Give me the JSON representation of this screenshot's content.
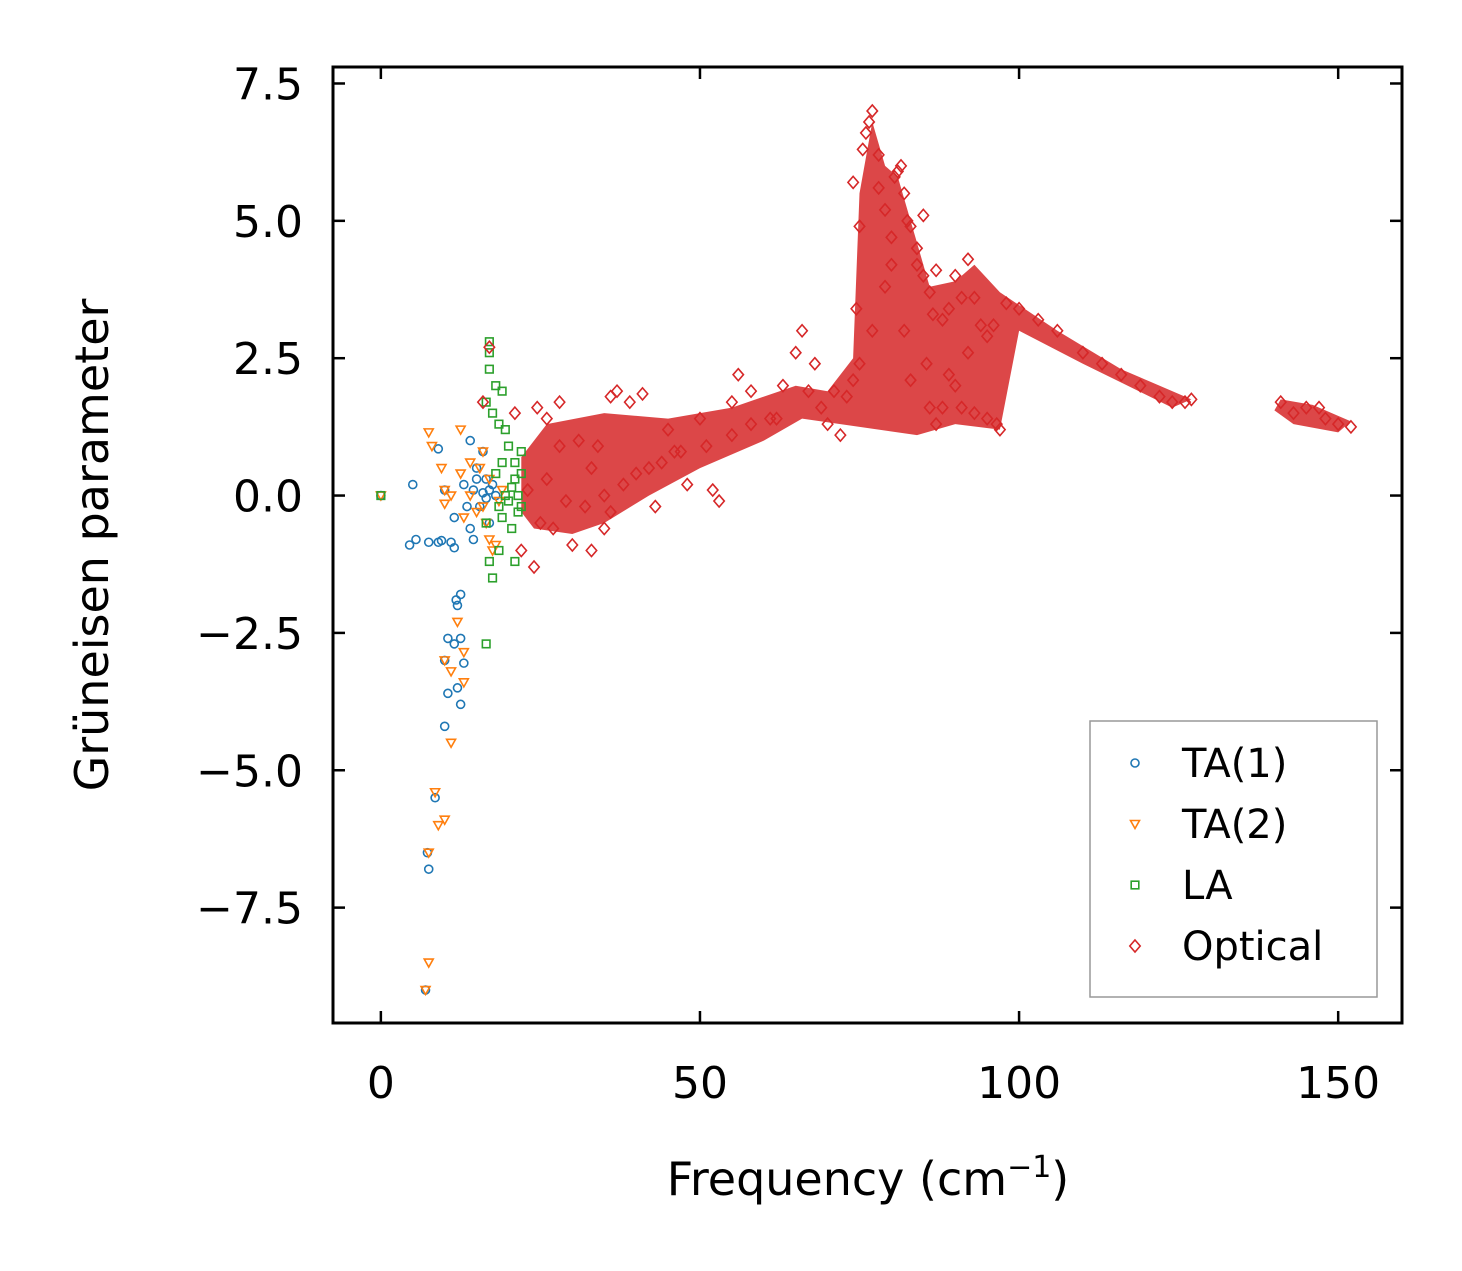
{
  "chart_data": {
    "type": "scatter",
    "title": "",
    "xlabel": "Frequency (cm",
    "xlabel_superscript": "−1",
    "xlabel_suffix": ")",
    "ylabel": "Grüneisen parameter",
    "xlim": [
      -7.5,
      160
    ],
    "ylim": [
      -9.6,
      7.8
    ],
    "x_ticks": [
      0,
      50,
      100,
      150
    ],
    "x_tick_labels": [
      "0",
      "50",
      "100",
      "150"
    ],
    "y_ticks": [
      7.5,
      5.0,
      2.5,
      0.0,
      -2.5,
      -5.0,
      -7.5
    ],
    "y_tick_labels": [
      "7.5",
      "5.0",
      "2.5",
      "0.0",
      "−2.5",
      "−5.0",
      "−7.5"
    ],
    "grid": false,
    "legend_position": "bottom-right",
    "series": [
      {
        "name": "TA(1)",
        "marker": "circle",
        "color": "#1f77b4",
        "points": [
          [
            0,
            0
          ],
          [
            7,
            -9.0
          ],
          [
            7.5,
            -6.8
          ],
          [
            7.3,
            -6.5
          ],
          [
            8.5,
            -5.5
          ],
          [
            10,
            -4.2
          ],
          [
            10.5,
            -3.6
          ],
          [
            12.5,
            -3.8
          ],
          [
            12,
            -3.5
          ],
          [
            10,
            -3.0
          ],
          [
            13,
            -3.05
          ],
          [
            10.5,
            -2.6
          ],
          [
            12.5,
            -2.6
          ],
          [
            11.5,
            -2.7
          ],
          [
            12,
            -2.0
          ],
          [
            12.5,
            -1.8
          ],
          [
            11.8,
            -1.9
          ],
          [
            4.5,
            -0.9
          ],
          [
            5.5,
            -0.8
          ],
          [
            7.5,
            -0.85
          ],
          [
            9,
            -0.85
          ],
          [
            9.5,
            -0.82
          ],
          [
            11,
            -0.85
          ],
          [
            11.5,
            -0.95
          ],
          [
            5,
            0.2
          ],
          [
            9,
            0.85
          ],
          [
            10,
            0.1
          ],
          [
            11.5,
            -0.4
          ],
          [
            13,
            0.2
          ],
          [
            14,
            1.0
          ],
          [
            16,
            0.8
          ],
          [
            15,
            0.5
          ],
          [
            16.5,
            0.3
          ],
          [
            17,
            0.1
          ],
          [
            15.5,
            -0.2
          ],
          [
            14,
            -0.6
          ],
          [
            14.5,
            -0.8
          ],
          [
            17,
            -0.5
          ],
          [
            13.5,
            -0.2
          ],
          [
            16,
            0.05
          ],
          [
            16.5,
            -0.05
          ],
          [
            17.5,
            0.2
          ],
          [
            18,
            0.0
          ],
          [
            15,
            0.3
          ],
          [
            14.5,
            0.1
          ]
        ]
      },
      {
        "name": "TA(2)",
        "marker": "triangle",
        "color": "#ff7f0e",
        "points": [
          [
            0,
            0
          ],
          [
            7,
            -9.0
          ],
          [
            7.5,
            -8.5
          ],
          [
            10,
            -5.9
          ],
          [
            9,
            -6.0
          ],
          [
            7.5,
            -6.5
          ],
          [
            8.5,
            -5.4
          ],
          [
            11,
            -4.5
          ],
          [
            11,
            -3.2
          ],
          [
            13,
            -3.4
          ],
          [
            13,
            -2.85
          ],
          [
            12,
            -2.3
          ],
          [
            10,
            -3.0
          ],
          [
            7.5,
            1.15
          ],
          [
            12.5,
            1.2
          ],
          [
            8,
            0.9
          ],
          [
            9.5,
            0.5
          ],
          [
            10,
            0.1
          ],
          [
            10,
            -0.15
          ],
          [
            11,
            0.0
          ],
          [
            12.5,
            0.4
          ],
          [
            13,
            -0.4
          ],
          [
            14,
            0.0
          ],
          [
            15,
            -0.3
          ],
          [
            16,
            -0.2
          ],
          [
            16.5,
            -0.5
          ],
          [
            17,
            0.3
          ],
          [
            18,
            -0.9
          ],
          [
            17,
            -0.8
          ],
          [
            16,
            0.8
          ],
          [
            14,
            0.6
          ],
          [
            15.5,
            0.5
          ],
          [
            18.5,
            -0.1
          ],
          [
            19,
            0.1
          ],
          [
            17.5,
            -1.0
          ]
        ]
      },
      {
        "name": "LA",
        "marker": "square",
        "color": "#2ca02c",
        "points": [
          [
            0,
            0
          ],
          [
            16.5,
            -2.7
          ],
          [
            17,
            2.8
          ],
          [
            17,
            2.6
          ],
          [
            17,
            2.3
          ],
          [
            16.5,
            1.7
          ],
          [
            18,
            2.0
          ],
          [
            19,
            1.9
          ],
          [
            17.5,
            1.5
          ],
          [
            18.5,
            1.3
          ],
          [
            19.5,
            1.2
          ],
          [
            20,
            0.9
          ],
          [
            21,
            0.6
          ],
          [
            22,
            0.8
          ],
          [
            21,
            0.3
          ],
          [
            20,
            -0.1
          ],
          [
            21.5,
            -0.3
          ],
          [
            19,
            -0.4
          ],
          [
            20.5,
            -0.6
          ],
          [
            21,
            -1.2
          ],
          [
            17,
            -1.2
          ],
          [
            17.5,
            -1.5
          ],
          [
            18.5,
            -1.0
          ],
          [
            16.5,
            -0.5
          ],
          [
            18,
            0.4
          ],
          [
            19.5,
            0.0
          ],
          [
            20.5,
            0.15
          ],
          [
            22,
            -0.2
          ],
          [
            21.5,
            0.0
          ],
          [
            18.5,
            -0.2
          ],
          [
            19,
            0.6
          ],
          [
            22,
            0.4
          ]
        ]
      },
      {
        "name": "Optical",
        "marker": "diamond",
        "color": "#d62728",
        "points": [
          [
            16,
            1.7
          ],
          [
            17,
            2.7
          ],
          [
            21,
            1.5
          ],
          [
            24,
            -1.3
          ],
          [
            22,
            -1.0
          ],
          [
            24.5,
            1.6
          ],
          [
            26,
            1.4
          ],
          [
            28,
            1.7
          ],
          [
            30,
            -0.9
          ],
          [
            33,
            -1.0
          ],
          [
            35,
            -0.6
          ],
          [
            36,
            1.8
          ],
          [
            37,
            1.9
          ],
          [
            39,
            1.7
          ],
          [
            41,
            1.85
          ],
          [
            42,
            0.5
          ],
          [
            46,
            0.8
          ],
          [
            48,
            0.2
          ],
          [
            50,
            1.4
          ],
          [
            52,
            0.1
          ],
          [
            53,
            -0.1
          ],
          [
            55,
            1.7
          ],
          [
            56,
            2.2
          ],
          [
            61,
            1.4
          ],
          [
            63,
            2.0
          ],
          [
            65,
            2.6
          ],
          [
            66,
            3.0
          ],
          [
            68,
            2.4
          ],
          [
            70,
            1.3
          ],
          [
            72,
            1.1
          ],
          [
            74,
            2.1
          ],
          [
            74.5,
            3.4
          ],
          [
            75,
            4.9
          ],
          [
            74,
            5.7
          ],
          [
            75.5,
            6.3
          ],
          [
            76,
            6.6
          ],
          [
            77,
            7.0
          ],
          [
            76.5,
            6.8
          ],
          [
            78,
            6.2
          ],
          [
            78,
            5.6
          ],
          [
            79,
            5.2
          ],
          [
            80,
            4.7
          ],
          [
            80.5,
            5.8
          ],
          [
            81,
            5.9
          ],
          [
            81.5,
            6.0
          ],
          [
            82,
            5.5
          ],
          [
            82.5,
            5.0
          ],
          [
            83,
            4.9
          ],
          [
            84,
            4.5
          ],
          [
            85,
            4.0
          ],
          [
            86,
            3.7
          ],
          [
            86.5,
            3.3
          ],
          [
            85.5,
            2.4
          ],
          [
            86,
            1.6
          ],
          [
            87,
            1.3
          ],
          [
            88,
            3.2
          ],
          [
            89,
            2.2
          ],
          [
            90,
            4.0
          ],
          [
            91,
            3.6
          ],
          [
            92,
            4.3
          ],
          [
            93,
            3.6
          ],
          [
            94,
            3.1
          ],
          [
            95,
            2.9
          ],
          [
            96,
            3.1
          ],
          [
            96.5,
            1.3
          ],
          [
            97,
            1.2
          ],
          [
            98,
            3.5
          ],
          [
            100,
            3.4
          ],
          [
            103,
            3.2
          ],
          [
            106,
            3.0
          ],
          [
            110,
            2.6
          ],
          [
            113,
            2.4
          ],
          [
            116,
            2.2
          ],
          [
            119,
            2.0
          ],
          [
            122,
            1.8
          ],
          [
            124,
            1.7
          ],
          [
            126,
            1.7
          ],
          [
            127,
            1.75
          ],
          [
            141,
            1.7
          ],
          [
            143,
            1.5
          ],
          [
            145,
            1.6
          ],
          [
            147,
            1.6
          ],
          [
            148,
            1.4
          ],
          [
            150,
            1.3
          ],
          [
            152,
            1.25
          ],
          [
            85,
            5.1
          ],
          [
            84,
            4.2
          ],
          [
            80,
            4.2
          ],
          [
            79,
            3.8
          ],
          [
            77,
            3.0
          ],
          [
            75,
            2.4
          ],
          [
            73,
            1.8
          ],
          [
            71,
            1.9
          ],
          [
            69,
            1.6
          ],
          [
            67,
            1.9
          ],
          [
            62,
            1.4
          ],
          [
            58,
            1.3
          ],
          [
            55,
            1.1
          ],
          [
            51,
            0.9
          ],
          [
            47,
            0.8
          ],
          [
            44,
            0.6
          ],
          [
            40,
            0.4
          ],
          [
            38,
            0.2
          ],
          [
            35,
            0.0
          ],
          [
            32,
            -0.2
          ],
          [
            29,
            -0.1
          ],
          [
            26,
            0.3
          ],
          [
            23,
            0.1
          ],
          [
            25,
            -0.5
          ],
          [
            28,
            0.9
          ],
          [
            31,
            1.0
          ],
          [
            34,
            0.9
          ],
          [
            36,
            -0.3
          ],
          [
            27,
            -0.6
          ],
          [
            33,
            0.5
          ],
          [
            45,
            1.2
          ],
          [
            43,
            -0.2
          ],
          [
            58,
            1.9
          ],
          [
            88,
            1.6
          ],
          [
            91,
            1.6
          ],
          [
            93,
            1.5
          ],
          [
            95,
            1.4
          ],
          [
            87,
            4.1
          ],
          [
            89,
            3.4
          ],
          [
            82,
            3.0
          ],
          [
            83,
            2.1
          ],
          [
            92,
            2.6
          ],
          [
            90,
            2.0
          ]
        ]
      }
    ]
  }
}
